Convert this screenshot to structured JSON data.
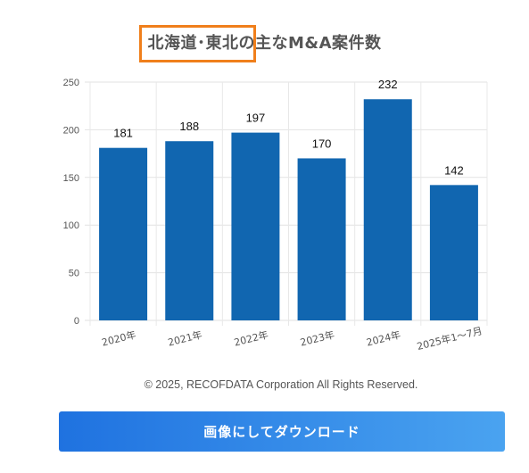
{
  "chart_data": {
    "type": "bar",
    "title": "北海道･東北の主なM&A案件数",
    "categories": [
      "2020年",
      "2021年",
      "2022年",
      "2023年",
      "2024年",
      "2025年1～7月"
    ],
    "values": [
      181,
      188,
      197,
      170,
      232,
      142
    ],
    "yticks": [
      "0",
      "50",
      "100",
      "150",
      "200",
      "250"
    ],
    "ylim": [
      0,
      250
    ],
    "grid": true,
    "xlabel": "",
    "ylabel": "",
    "bar_color": "#1166b0"
  },
  "highlight_color": "#f07f1b",
  "copyright": "© 2025, RECOFDATA Corporation All Rights Reserved.",
  "download_button": {
    "label": "画像にしてダウンロード",
    "color_start": "#1f72e0",
    "color_end": "#4aa3f0"
  }
}
